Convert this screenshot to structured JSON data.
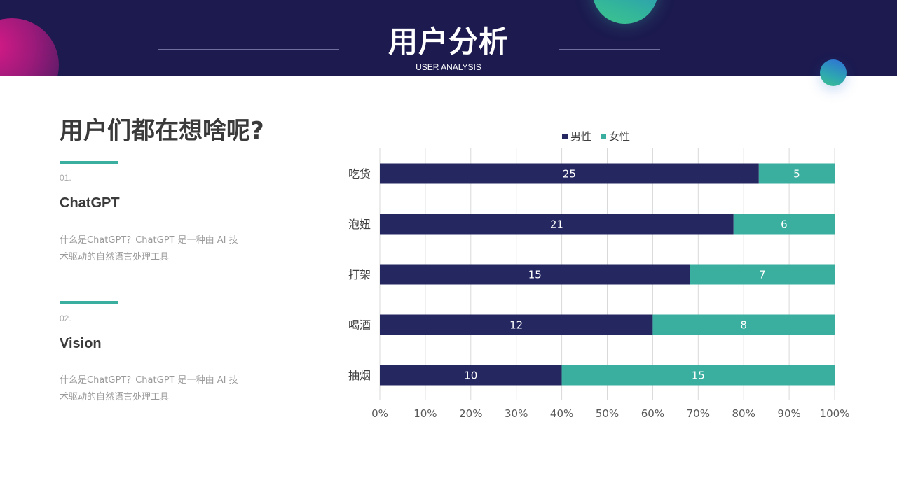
{
  "header": {
    "title": "用户分析",
    "subtitle": "USER ANALYSIS"
  },
  "left": {
    "question": "用户们都在想啥呢?",
    "items": [
      {
        "number": "01.",
        "title": "ChatGPT",
        "desc_line1": "什么是ChatGPT？ChatGPT 是一种由 AI 技",
        "desc_line2": "术驱动的自然语言处理工具"
      },
      {
        "number": "02.",
        "title": "Vision",
        "desc_line1": "什么是ChatGPT？ChatGPT 是一种由 AI 技",
        "desc_line2": "术驱动的自然语言处理工具"
      }
    ]
  },
  "colors": {
    "header_bg": "#1c1a4f",
    "male": "#252760",
    "female": "#3aaf9f",
    "accent": "#3aaf9f"
  },
  "chart_data": {
    "type": "bar",
    "orientation": "horizontal",
    "stacking": "percent",
    "categories": [
      "吃货",
      "泡妞",
      "打架",
      "喝酒",
      "抽烟"
    ],
    "series": [
      {
        "name": "男性",
        "values": [
          25,
          21,
          15,
          12,
          10
        ]
      },
      {
        "name": "女性",
        "values": [
          5,
          6,
          7,
          8,
          15
        ]
      }
    ],
    "xlim": [
      0,
      100
    ],
    "x_ticks": [
      "0%",
      "10%",
      "20%",
      "30%",
      "40%",
      "50%",
      "60%",
      "70%",
      "80%",
      "90%",
      "100%"
    ],
    "grid": true,
    "legend": "top",
    "data_labels": true
  }
}
